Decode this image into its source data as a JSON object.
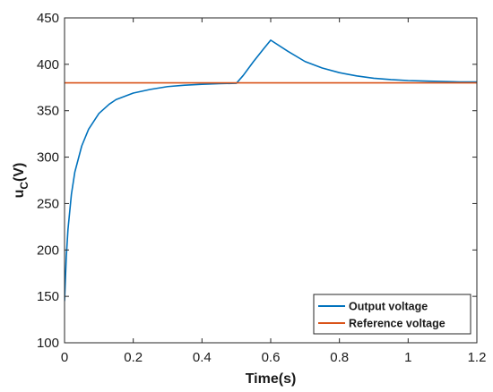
{
  "chart_data": {
    "type": "line",
    "xlabel": "Time(s)",
    "ylabel_main": "u",
    "ylabel_sub": "C",
    "ylabel_tail": "(V)",
    "xlim": [
      0,
      1.2
    ],
    "ylim": [
      100,
      450
    ],
    "xticks": [
      0,
      0.2,
      0.4,
      0.6,
      0.8,
      1,
      1.2
    ],
    "xtick_labels": [
      "0",
      "0.2",
      "0.4",
      "0.6",
      "0.8",
      "1",
      "1.2"
    ],
    "yticks": [
      100,
      150,
      200,
      250,
      300,
      350,
      400,
      450
    ],
    "ytick_labels": [
      "100",
      "150",
      "200",
      "250",
      "300",
      "350",
      "400",
      "450"
    ],
    "grid": false,
    "legend_position": "bottom-right",
    "series": [
      {
        "name": "Output voltage",
        "color": "#0072BD",
        "x": [
          0,
          0.005,
          0.01,
          0.02,
          0.03,
          0.05,
          0.07,
          0.1,
          0.13,
          0.15,
          0.2,
          0.25,
          0.3,
          0.35,
          0.4,
          0.45,
          0.5,
          0.52,
          0.55,
          0.58,
          0.6,
          0.65,
          0.7,
          0.75,
          0.8,
          0.85,
          0.9,
          0.95,
          1.0,
          1.05,
          1.1,
          1.15,
          1.2
        ],
        "y": [
          145,
          192,
          222,
          260,
          284,
          312,
          330,
          347,
          357,
          362,
          369,
          373,
          376,
          377.5,
          378.5,
          379.2,
          379.5,
          388,
          403,
          417,
          426,
          414,
          403,
          396,
          391,
          387.5,
          385,
          383.5,
          382.5,
          382,
          381.5,
          381,
          381
        ]
      },
      {
        "name": "Reference voltage",
        "color": "#D95319",
        "x": [
          0,
          1.2
        ],
        "y": [
          380,
          380
        ]
      }
    ]
  }
}
